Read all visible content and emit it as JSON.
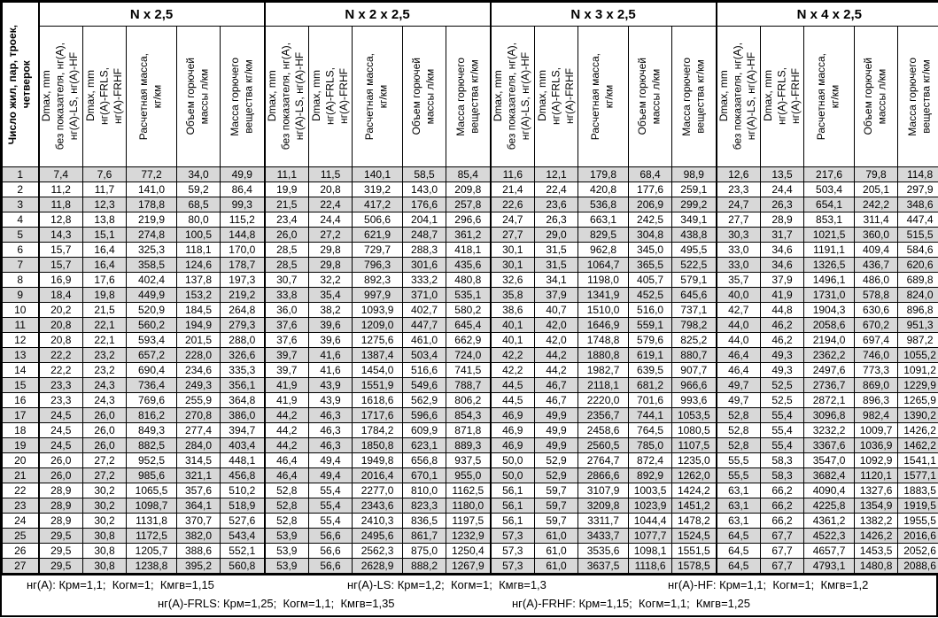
{
  "table": {
    "corner_header": "Число жил, пар, троек,\nчетверок",
    "groups": [
      {
        "title": "N x 2,5"
      },
      {
        "title": "N x 2 x 2,5"
      },
      {
        "title": "N x 3 x 2,5"
      },
      {
        "title": "N x 4 x 2,5"
      }
    ],
    "sub_headers": [
      "Dmax, mm\nбез показателя, нг(А),\nнг(А)-LS, нг(А)-HF",
      "Dmax, mm\nнг(А)-FRLS,\nнг(А)-FRHF",
      "Расчетная масса,\nкг/км",
      "Объем горючей\nмассы л/км",
      "Масса горючего\nвещества кг/км"
    ],
    "rows": [
      {
        "n": "1",
        "values": [
          "7,4",
          "7,6",
          "77,2",
          "34,0",
          "49,9",
          "11,1",
          "11,5",
          "140,1",
          "58,5",
          "85,4",
          "11,6",
          "12,1",
          "179,8",
          "68,4",
          "98,9",
          "12,6",
          "13,5",
          "217,6",
          "79,8",
          "114,8"
        ]
      },
      {
        "n": "2",
        "values": [
          "11,2",
          "11,7",
          "141,0",
          "59,2",
          "86,4",
          "19,9",
          "20,8",
          "319,2",
          "143,0",
          "209,8",
          "21,4",
          "22,4",
          "420,8",
          "177,6",
          "259,1",
          "23,3",
          "24,4",
          "503,4",
          "205,1",
          "297,9"
        ]
      },
      {
        "n": "3",
        "values": [
          "11,8",
          "12,3",
          "178,8",
          "68,5",
          "99,3",
          "21,5",
          "22,4",
          "417,2",
          "176,6",
          "257,8",
          "22,6",
          "23,6",
          "536,8",
          "206,9",
          "299,2",
          "24,7",
          "26,3",
          "654,1",
          "242,2",
          "348,6"
        ]
      },
      {
        "n": "4",
        "values": [
          "12,8",
          "13,8",
          "219,9",
          "80,0",
          "115,2",
          "23,4",
          "24,4",
          "506,6",
          "204,1",
          "296,6",
          "24,7",
          "26,3",
          "663,1",
          "242,5",
          "349,1",
          "27,7",
          "28,9",
          "853,1",
          "311,4",
          "447,4"
        ]
      },
      {
        "n": "5",
        "values": [
          "14,3",
          "15,1",
          "274,8",
          "100,5",
          "144,8",
          "26,0",
          "27,2",
          "621,9",
          "248,7",
          "361,2",
          "27,7",
          "29,0",
          "829,5",
          "304,8",
          "438,8",
          "30,3",
          "31,7",
          "1021,5",
          "360,0",
          "515,5"
        ]
      },
      {
        "n": "6",
        "values": [
          "15,7",
          "16,4",
          "325,3",
          "118,1",
          "170,0",
          "28,5",
          "29,8",
          "729,7",
          "288,3",
          "418,1",
          "30,1",
          "31,5",
          "962,8",
          "345,0",
          "495,5",
          "33,0",
          "34,6",
          "1191,1",
          "409,4",
          "584,6"
        ]
      },
      {
        "n": "7",
        "values": [
          "15,7",
          "16,4",
          "358,5",
          "124,6",
          "178,7",
          "28,5",
          "29,8",
          "796,3",
          "301,6",
          "435,6",
          "30,1",
          "31,5",
          "1064,7",
          "365,5",
          "522,5",
          "33,0",
          "34,6",
          "1326,5",
          "436,7",
          "620,6"
        ]
      },
      {
        "n": "8",
        "values": [
          "16,9",
          "17,6",
          "402,4",
          "137,8",
          "197,3",
          "30,7",
          "32,2",
          "892,3",
          "333,2",
          "480,8",
          "32,6",
          "34,1",
          "1198,0",
          "405,7",
          "579,1",
          "35,7",
          "37,9",
          "1496,1",
          "486,0",
          "689,8"
        ]
      },
      {
        "n": "9",
        "values": [
          "18,4",
          "19,8",
          "449,9",
          "153,2",
          "219,2",
          "33,8",
          "35,4",
          "997,9",
          "371,0",
          "535,1",
          "35,8",
          "37,9",
          "1341,9",
          "452,5",
          "645,6",
          "40,0",
          "41,9",
          "1731,0",
          "578,8",
          "824,0"
        ]
      },
      {
        "n": "10",
        "values": [
          "20,2",
          "21,5",
          "520,9",
          "184,5",
          "264,8",
          "36,0",
          "38,2",
          "1093,9",
          "402,7",
          "580,2",
          "38,6",
          "40,7",
          "1510,0",
          "516,0",
          "737,1",
          "42,7",
          "44,8",
          "1904,3",
          "630,6",
          "896,8"
        ]
      },
      {
        "n": "11",
        "values": [
          "20,8",
          "22,1",
          "560,2",
          "194,9",
          "279,3",
          "37,6",
          "39,6",
          "1209,0",
          "447,7",
          "645,4",
          "40,1",
          "42,0",
          "1646,9",
          "559,1",
          "798,2",
          "44,0",
          "46,2",
          "2058,6",
          "670,2",
          "951,3"
        ]
      },
      {
        "n": "12",
        "values": [
          "20,8",
          "22,1",
          "593,4",
          "201,5",
          "288,0",
          "37,6",
          "39,6",
          "1275,6",
          "461,0",
          "662,9",
          "40,1",
          "42,0",
          "1748,8",
          "579,6",
          "825,2",
          "44,0",
          "46,2",
          "2194,0",
          "697,4",
          "987,2"
        ]
      },
      {
        "n": "13",
        "values": [
          "22,2",
          "23,2",
          "657,2",
          "228,0",
          "326,6",
          "39,7",
          "41,6",
          "1387,4",
          "503,4",
          "724,0",
          "42,2",
          "44,2",
          "1880,8",
          "619,1",
          "880,7",
          "46,4",
          "49,3",
          "2362,2",
          "746,0",
          "1055,2"
        ]
      },
      {
        "n": "14",
        "values": [
          "22,2",
          "23,2",
          "690,4",
          "234,6",
          "335,3",
          "39,7",
          "41,6",
          "1454,0",
          "516,6",
          "741,5",
          "42,2",
          "44,2",
          "1982,7",
          "639,5",
          "907,7",
          "46,4",
          "49,3",
          "2497,6",
          "773,3",
          "1091,2"
        ]
      },
      {
        "n": "15",
        "values": [
          "23,3",
          "24,3",
          "736,4",
          "249,3",
          "356,1",
          "41,9",
          "43,9",
          "1551,9",
          "549,6",
          "788,7",
          "44,5",
          "46,7",
          "2118,1",
          "681,2",
          "966,6",
          "49,7",
          "52,5",
          "2736,7",
          "869,0",
          "1229,9"
        ]
      },
      {
        "n": "16",
        "values": [
          "23,3",
          "24,3",
          "769,6",
          "255,9",
          "364,8",
          "41,9",
          "43,9",
          "1618,6",
          "562,9",
          "806,2",
          "44,5",
          "46,7",
          "2220,0",
          "701,6",
          "993,6",
          "49,7",
          "52,5",
          "2872,1",
          "896,3",
          "1265,9"
        ]
      },
      {
        "n": "17",
        "values": [
          "24,5",
          "26,0",
          "816,2",
          "270,8",
          "386,0",
          "44,2",
          "46,3",
          "1717,6",
          "596,6",
          "854,3",
          "46,9",
          "49,9",
          "2356,7",
          "744,1",
          "1053,5",
          "52,8",
          "55,4",
          "3096,8",
          "982,4",
          "1390,2"
        ]
      },
      {
        "n": "18",
        "values": [
          "24,5",
          "26,0",
          "849,3",
          "277,4",
          "394,7",
          "44,2",
          "46,3",
          "1784,2",
          "609,9",
          "871,8",
          "46,9",
          "49,9",
          "2458,6",
          "764,5",
          "1080,5",
          "52,8",
          "55,4",
          "3232,2",
          "1009,7",
          "1426,2"
        ]
      },
      {
        "n": "19",
        "values": [
          "24,5",
          "26,0",
          "882,5",
          "284,0",
          "403,4",
          "44,2",
          "46,3",
          "1850,8",
          "623,1",
          "889,3",
          "46,9",
          "49,9",
          "2560,5",
          "785,0",
          "1107,5",
          "52,8",
          "55,4",
          "3367,6",
          "1036,9",
          "1462,2"
        ]
      },
      {
        "n": "20",
        "values": [
          "26,0",
          "27,2",
          "952,5",
          "314,5",
          "448,1",
          "46,4",
          "49,4",
          "1949,8",
          "656,8",
          "937,5",
          "50,0",
          "52,9",
          "2764,7",
          "872,4",
          "1235,0",
          "55,5",
          "58,3",
          "3547,0",
          "1092,9",
          "1541,1"
        ]
      },
      {
        "n": "21",
        "values": [
          "26,0",
          "27,2",
          "985,6",
          "321,1",
          "456,8",
          "46,4",
          "49,4",
          "2016,4",
          "670,1",
          "955,0",
          "50,0",
          "52,9",
          "2866,6",
          "892,9",
          "1262,0",
          "55,5",
          "58,3",
          "3682,4",
          "1120,1",
          "1577,1"
        ]
      },
      {
        "n": "22",
        "values": [
          "28,9",
          "30,2",
          "1065,5",
          "357,6",
          "510,2",
          "52,8",
          "55,4",
          "2277,0",
          "810,0",
          "1162,5",
          "56,1",
          "59,7",
          "3107,9",
          "1003,5",
          "1424,2",
          "63,1",
          "66,2",
          "4090,4",
          "1327,6",
          "1883,5"
        ]
      },
      {
        "n": "23",
        "values": [
          "28,9",
          "30,2",
          "1098,7",
          "364,1",
          "518,9",
          "52,8",
          "55,4",
          "2343,6",
          "823,3",
          "1180,0",
          "56,1",
          "59,7",
          "3209,8",
          "1023,9",
          "1451,2",
          "63,1",
          "66,2",
          "4225,8",
          "1354,9",
          "1919,5"
        ]
      },
      {
        "n": "24",
        "values": [
          "28,9",
          "30,2",
          "1131,8",
          "370,7",
          "527,6",
          "52,8",
          "55,4",
          "2410,3",
          "836,5",
          "1197,5",
          "56,1",
          "59,7",
          "3311,7",
          "1044,4",
          "1478,2",
          "63,1",
          "66,2",
          "4361,2",
          "1382,2",
          "1955,5"
        ]
      },
      {
        "n": "25",
        "values": [
          "29,5",
          "30,8",
          "1172,5",
          "382,0",
          "543,4",
          "53,9",
          "56,6",
          "2495,6",
          "861,7",
          "1232,9",
          "57,3",
          "61,0",
          "3433,7",
          "1077,7",
          "1524,5",
          "64,5",
          "67,7",
          "4522,3",
          "1426,2",
          "2016,6"
        ]
      },
      {
        "n": "26",
        "values": [
          "29,5",
          "30,8",
          "1205,7",
          "388,6",
          "552,1",
          "53,9",
          "56,6",
          "2562,3",
          "875,0",
          "1250,4",
          "57,3",
          "61,0",
          "3535,6",
          "1098,1",
          "1551,5",
          "64,5",
          "67,7",
          "4657,7",
          "1453,5",
          "2052,6"
        ]
      },
      {
        "n": "27",
        "values": [
          "29,5",
          "30,8",
          "1238,8",
          "395,2",
          "560,8",
          "53,9",
          "56,6",
          "2628,9",
          "888,2",
          "1267,9",
          "57,3",
          "61,0",
          "3637,5",
          "1118,6",
          "1578,5",
          "64,5",
          "67,7",
          "4793,1",
          "1480,8",
          "2088,6"
        ]
      }
    ],
    "footnotes": {
      "line1": [
        "нг(А): Крм=1,1;  Когм=1;  Кмгв=1,15",
        "нг(А)-LS: Крм=1,2;  Когм=1;  Кмгв=1,3",
        "нг(А)-HF: Крм=1,1;  Когм=1;  Кмгв=1,2"
      ],
      "line2": [
        "нг(А)-FRLS: Крм=1,25;  Когм=1,1;  Кмгв=1,35",
        "нг(А)-FRHF: Крм=1,15;  Когм=1,1;  Кмгв=1,25"
      ]
    },
    "colors": {
      "stripe": "#d8d8d8",
      "border": "#000000",
      "background": "#ffffff"
    }
  }
}
